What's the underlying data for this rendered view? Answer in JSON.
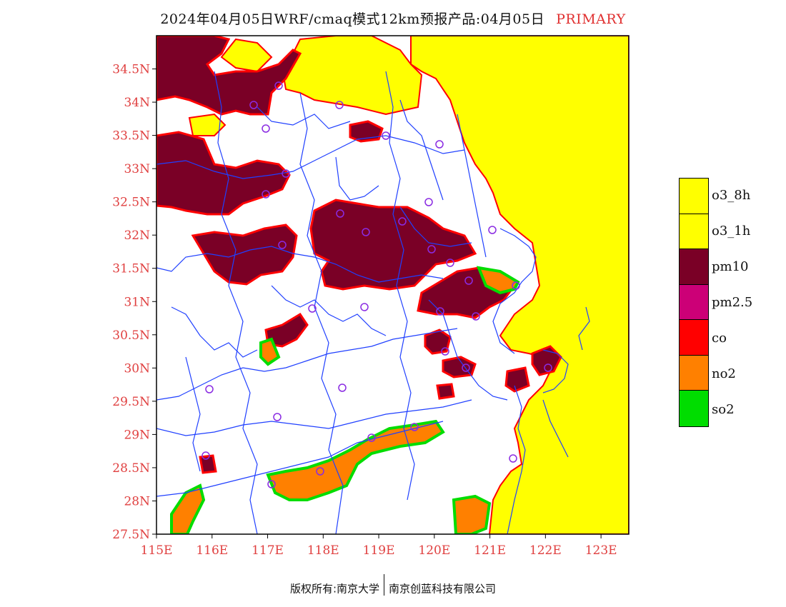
{
  "title": {
    "main": "2024年04月05日WRF/cmaq模式12km预报产品:04月05日",
    "tag": "PRIMARY"
  },
  "axes": {
    "lat_labels": [
      "27.5N",
      "28N",
      "28.5N",
      "29N",
      "29.5N",
      "30N",
      "30.5N",
      "31N",
      "31.5N",
      "32N",
      "32.5N",
      "33N",
      "33.5N",
      "34N",
      "34.5N"
    ],
    "lat_values": [
      27.5,
      28,
      28.5,
      29,
      29.5,
      30,
      30.5,
      31,
      31.5,
      32,
      32.5,
      33,
      33.5,
      34,
      34.5
    ],
    "lon_labels": [
      "115E",
      "116E",
      "117E",
      "118E",
      "119E",
      "120E",
      "121E",
      "122E",
      "123E"
    ],
    "lon_values": [
      115,
      116,
      117,
      118,
      119,
      120,
      121,
      122,
      123
    ],
    "lon_range": [
      115,
      123.5
    ],
    "lat_range": [
      27.5,
      35.0
    ],
    "tick_color": "#e04040"
  },
  "legend": {
    "items": [
      {
        "label": "o3_8h",
        "color": "#ffff00"
      },
      {
        "label": "o3_1h",
        "color": "#ffff00"
      },
      {
        "label": "pm10",
        "color": "#7a0026"
      },
      {
        "label": "pm2.5",
        "color": "#cc0077"
      },
      {
        "label": "co",
        "color": "#ff0000"
      },
      {
        "label": "no2",
        "color": "#ff8000"
      },
      {
        "label": "so2",
        "color": "#00dd00"
      }
    ]
  },
  "footer": {
    "left": "版权所有:南京大学",
    "right": "南京创蓝科技有限公司"
  }
}
